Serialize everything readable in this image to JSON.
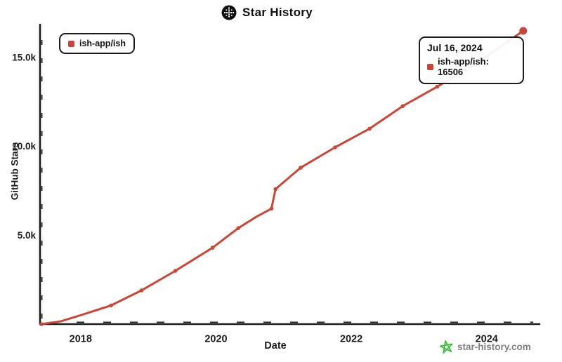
{
  "header": {
    "title": "Star History"
  },
  "legend": {
    "items": [
      {
        "label": "ish-app/ish"
      }
    ]
  },
  "tooltip": {
    "date": "Jul 16, 2024",
    "series": "ish-app/ish",
    "value": 16506,
    "series_label": "ish-app/ish: 16506"
  },
  "watermark": {
    "text": "star-history.com"
  },
  "colors": {
    "line": "#cb4638",
    "axis": "#1c1c1c",
    "watermark_star": "#3dbd3d",
    "watermark_text": "#808080",
    "background": "#ffffff"
  },
  "chart_data": {
    "type": "line",
    "title": "Star History",
    "xlabel": "Date",
    "ylabel": "GitHub Stars",
    "xlim": [
      2017.4,
      2024.75
    ],
    "ylim": [
      0,
      16860
    ],
    "grid": false,
    "legend_position": "top-left",
    "x_ticks": [
      {
        "value": 2018,
        "label": "2018"
      },
      {
        "value": 2020,
        "label": "2020"
      },
      {
        "value": 2022,
        "label": "2022"
      },
      {
        "value": 2024,
        "label": "2024"
      }
    ],
    "y_ticks": [
      {
        "value": 5000,
        "label": "5.0k"
      },
      {
        "value": 10000,
        "label": "10.0k"
      },
      {
        "value": 15000,
        "label": "15.0k"
      }
    ],
    "series": [
      {
        "name": "ish-app/ish",
        "color": "#cb4638",
        "points_format": "[year, stars, marker(0=none,1=dot,2=end-dot)]",
        "points": [
          [
            2017.42,
            0,
            1
          ],
          [
            2017.7,
            150,
            0
          ],
          [
            2018.0,
            500,
            0
          ],
          [
            2018.45,
            1050,
            1
          ],
          [
            2018.9,
            1900,
            1
          ],
          [
            2019.4,
            3000,
            1
          ],
          [
            2019.95,
            4300,
            1
          ],
          [
            2020.33,
            5400,
            1
          ],
          [
            2020.6,
            6050,
            0
          ],
          [
            2020.82,
            6500,
            1
          ],
          [
            2020.88,
            7600,
            1
          ],
          [
            2021.25,
            8800,
            1
          ],
          [
            2021.76,
            9950,
            1
          ],
          [
            2022.27,
            11000,
            1
          ],
          [
            2022.76,
            12270,
            1
          ],
          [
            2023.27,
            13360,
            1
          ],
          [
            2023.8,
            14550,
            0
          ],
          [
            2024.54,
            16506,
            2
          ]
        ],
        "last_point": {
          "date": "Jul 16, 2024",
          "stars": 16506
        }
      }
    ]
  }
}
